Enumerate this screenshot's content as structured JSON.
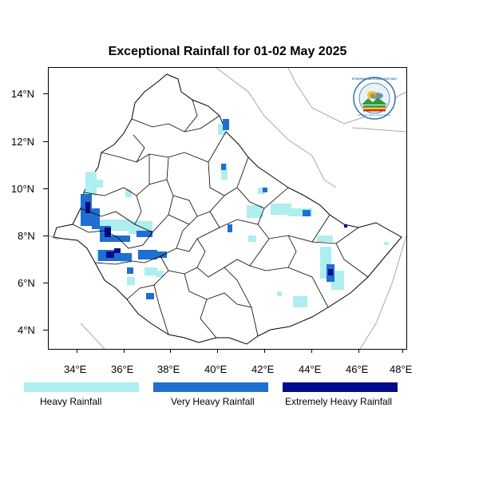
{
  "title": "Exceptional Rainfall for 01-02 May 2025",
  "map": {
    "y_axis_labels": [
      "14°N",
      "12°N",
      "10°N",
      "8°N",
      "6°N",
      "4°N"
    ],
    "x_axis_labels": [
      "34°E",
      "36°E",
      "38°E",
      "40°E",
      "42°E",
      "44°E",
      "46°E",
      "48°E"
    ],
    "colors": {
      "heavy": "#aeeef0",
      "very_heavy": "#1f6fd0",
      "extremely_heavy": "#000a8a",
      "border": "#000000",
      "neighbor_border": "#a8a8a8"
    }
  },
  "legend": [
    {
      "label": "Heavy Rainfall",
      "color": "#aeeef0"
    },
    {
      "label": "Very Heavy Rainfall",
      "color": "#1f6fd0"
    },
    {
      "label": "Extremely Heavy Rainfall",
      "color": "#000a8a"
    }
  ],
  "logo": {
    "arc_text": "ETHIOPIAN METEOROLOGY INSTITUTE",
    "sub_text": "Ethiopian Meteorology Institute",
    "icon_name": "ethiopian-meteorology-institute-logo"
  }
}
